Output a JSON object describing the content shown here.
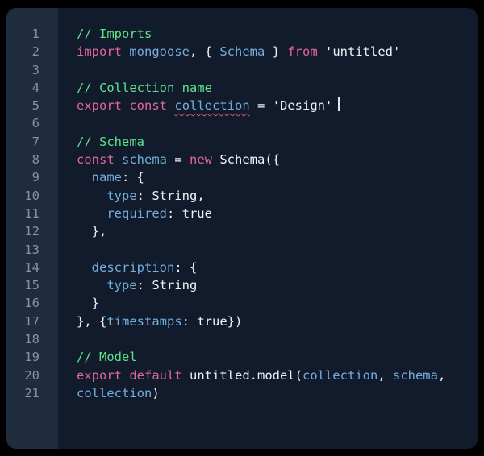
{
  "theme": {
    "bg-outer": "#000000",
    "bg-code": "#111b2b",
    "bg-gutter": "#1e2c3e",
    "fg-linenum": "#8792a2",
    "fg-plain": "#eef2f7",
    "fg-keyword": "#e2669e",
    "fg-identifier": "#73aedd",
    "fg-comment": "#5ee389",
    "fg-string": "#eef2f7",
    "fg-error": "#e05c6e",
    "fg-cursor": "#dfe6ee"
  },
  "editor": {
    "language": "javascript",
    "cursor_line": "5",
    "error_word": "collection",
    "lines": [
      {
        "number": "1",
        "tokens": [
          {
            "type": "comment",
            "text": "// Imports"
          }
        ]
      },
      {
        "number": "2",
        "tokens": [
          {
            "type": "keyword",
            "text": "import"
          },
          {
            "type": "plain",
            "text": " "
          },
          {
            "type": "identifier",
            "text": "mongoose"
          },
          {
            "type": "plain",
            "text": ", { "
          },
          {
            "type": "identifier",
            "text": "Schema"
          },
          {
            "type": "plain",
            "text": " } "
          },
          {
            "type": "keyword",
            "text": "from"
          },
          {
            "type": "plain",
            "text": " "
          },
          {
            "type": "string",
            "text": "'untitled'"
          }
        ]
      },
      {
        "number": "3",
        "tokens": []
      },
      {
        "number": "4",
        "tokens": [
          {
            "type": "comment",
            "text": "// Collection name"
          }
        ]
      },
      {
        "number": "5",
        "tokens": [
          {
            "type": "keyword",
            "text": "export"
          },
          {
            "type": "plain",
            "text": " "
          },
          {
            "type": "keyword",
            "text": "const"
          },
          {
            "type": "plain",
            "text": " "
          },
          {
            "type": "identifier",
            "text": "collection",
            "error": true
          },
          {
            "type": "plain",
            "text": " = "
          },
          {
            "type": "string",
            "text": "'Design'"
          },
          {
            "type": "cursor",
            "text": ""
          }
        ]
      },
      {
        "number": "6",
        "tokens": []
      },
      {
        "number": "7",
        "tokens": [
          {
            "type": "comment",
            "text": "// Schema"
          }
        ]
      },
      {
        "number": "8",
        "tokens": [
          {
            "type": "keyword",
            "text": "const"
          },
          {
            "type": "plain",
            "text": " "
          },
          {
            "type": "identifier",
            "text": "schema"
          },
          {
            "type": "plain",
            "text": " = "
          },
          {
            "type": "keyword",
            "text": "new"
          },
          {
            "type": "plain",
            "text": " Schema({"
          }
        ]
      },
      {
        "number": "9",
        "tokens": [
          {
            "type": "plain",
            "text": "  "
          },
          {
            "type": "identifier",
            "text": "name"
          },
          {
            "type": "plain",
            "text": ": {"
          }
        ]
      },
      {
        "number": "10",
        "tokens": [
          {
            "type": "plain",
            "text": "    "
          },
          {
            "type": "identifier",
            "text": "type"
          },
          {
            "type": "plain",
            "text": ": String,"
          }
        ]
      },
      {
        "number": "11",
        "tokens": [
          {
            "type": "plain",
            "text": "    "
          },
          {
            "type": "identifier",
            "text": "required"
          },
          {
            "type": "plain",
            "text": ": true"
          }
        ]
      },
      {
        "number": "12",
        "tokens": [
          {
            "type": "plain",
            "text": "  },"
          }
        ]
      },
      {
        "number": "13",
        "tokens": []
      },
      {
        "number": "14",
        "tokens": [
          {
            "type": "plain",
            "text": "  "
          },
          {
            "type": "identifier",
            "text": "description"
          },
          {
            "type": "plain",
            "text": ": {"
          }
        ]
      },
      {
        "number": "15",
        "tokens": [
          {
            "type": "plain",
            "text": "    "
          },
          {
            "type": "identifier",
            "text": "type"
          },
          {
            "type": "plain",
            "text": ": String"
          }
        ]
      },
      {
        "number": "16",
        "tokens": [
          {
            "type": "plain",
            "text": "  }"
          }
        ]
      },
      {
        "number": "17",
        "tokens": [
          {
            "type": "plain",
            "text": "}, {"
          },
          {
            "type": "identifier",
            "text": "timestamps"
          },
          {
            "type": "plain",
            "text": ": true})"
          }
        ]
      },
      {
        "number": "18",
        "tokens": []
      },
      {
        "number": "19",
        "tokens": [
          {
            "type": "comment",
            "text": "// Model"
          }
        ]
      },
      {
        "number": "20",
        "tokens": [
          {
            "type": "keyword",
            "text": "export"
          },
          {
            "type": "plain",
            "text": " "
          },
          {
            "type": "keyword",
            "text": "default"
          },
          {
            "type": "plain",
            "text": " untitled.model("
          },
          {
            "type": "identifier",
            "text": "collection"
          },
          {
            "type": "plain",
            "text": ", "
          },
          {
            "type": "identifier",
            "text": "schema"
          },
          {
            "type": "plain",
            "text": ","
          }
        ]
      },
      {
        "number": "21",
        "tokens": [
          {
            "type": "identifier",
            "text": "collection"
          },
          {
            "type": "plain",
            "text": ")"
          }
        ]
      }
    ]
  }
}
